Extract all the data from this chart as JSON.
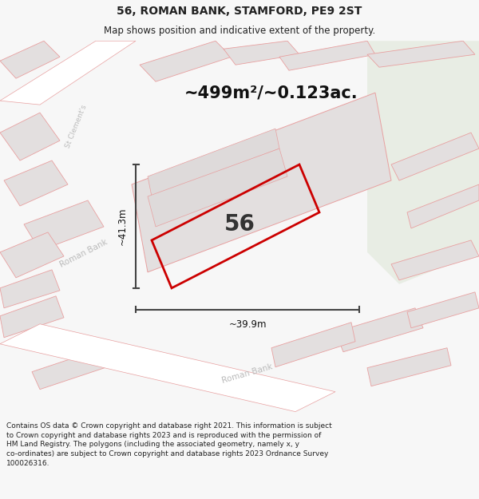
{
  "title": "56, ROMAN BANK, STAMFORD, PE9 2ST",
  "subtitle": "Map shows position and indicative extent of the property.",
  "area_text": "~499m²/~0.123ac.",
  "label_56": "56",
  "dim_height": "~41.3m",
  "dim_width": "~39.9m",
  "footer": "Contains OS data © Crown copyright and database right 2021. This information is subject to Crown copyright and database rights 2023 and is reproduced with the permission of HM Land Registry. The polygons (including the associated geometry, namely x, y co-ordinates) are subject to Crown copyright and database rights 2023 Ordnance Survey 100026316.",
  "bg_color": "#f7f7f7",
  "map_bg": "#eeecec",
  "plot_color": "#e3dfdf",
  "road_color": "#ffffff",
  "green_area": "#e8ede4",
  "road_outline": "#e8a0a0",
  "red_plot_outline": "#cc0000",
  "dim_line_color": "#444444",
  "road_label_color": "#bbbbbb",
  "title_color": "#222222",
  "footer_color": "#222222",
  "title_fontsize": 10,
  "subtitle_fontsize": 8.5,
  "footer_fontsize": 6.5
}
